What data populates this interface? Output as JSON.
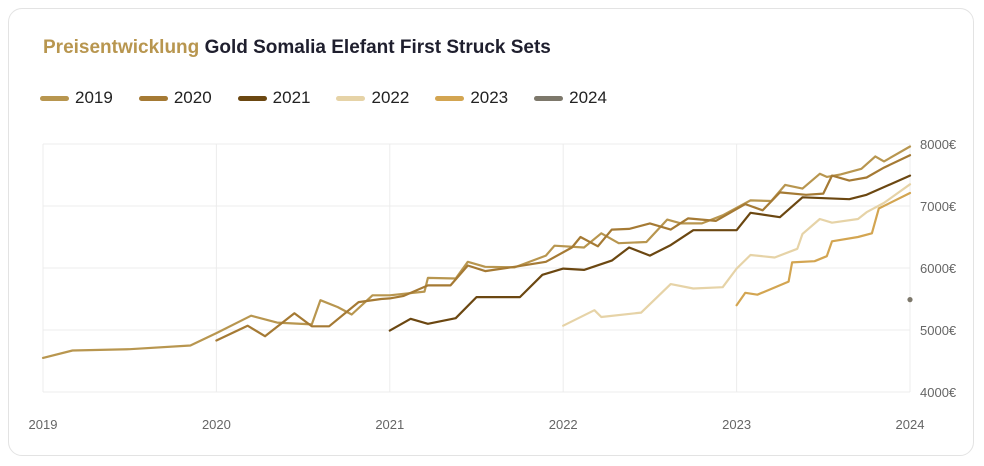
{
  "title": {
    "accent": "Preisentwicklung",
    "rest": "Gold Somalia Elefant First Struck Sets"
  },
  "chart_data": {
    "type": "line",
    "title": "Preisentwicklung Gold Somalia Elefant First Struck Sets",
    "xlabel": "",
    "ylabel": "",
    "xlim": [
      2019,
      2024
    ],
    "ylim": [
      4000,
      8000
    ],
    "x_ticks": [
      "2019",
      "2020",
      "2021",
      "2022",
      "2023",
      "2024"
    ],
    "y_ticks": [
      {
        "value": 8000,
        "label": "8000€"
      },
      {
        "value": 7000,
        "label": "7000€"
      },
      {
        "value": 6000,
        "label": "6000€"
      },
      {
        "value": 5000,
        "label": "5000€"
      },
      {
        "value": 4000,
        "label": "4000€"
      }
    ],
    "grid": true,
    "legend_position": "top-left",
    "series": [
      {
        "name": "2019",
        "color": "#b8964f",
        "points": [
          [
            2019.0,
            4550
          ],
          [
            2019.17,
            4670
          ],
          [
            2019.5,
            4690
          ],
          [
            2019.85,
            4750
          ],
          [
            2020.0,
            4950
          ],
          [
            2020.2,
            5230
          ],
          [
            2020.35,
            5120
          ],
          [
            2020.55,
            5090
          ],
          [
            2020.6,
            5480
          ],
          [
            2020.7,
            5370
          ],
          [
            2020.78,
            5250
          ],
          [
            2020.9,
            5560
          ],
          [
            2021.0,
            5560
          ],
          [
            2021.2,
            5620
          ],
          [
            2021.22,
            5840
          ],
          [
            2021.38,
            5830
          ],
          [
            2021.45,
            6100
          ],
          [
            2021.55,
            6020
          ],
          [
            2021.72,
            6010
          ],
          [
            2021.9,
            6200
          ],
          [
            2021.95,
            6360
          ],
          [
            2022.12,
            6330
          ],
          [
            2022.22,
            6560
          ],
          [
            2022.32,
            6400
          ],
          [
            2022.48,
            6420
          ],
          [
            2022.6,
            6780
          ],
          [
            2022.68,
            6720
          ],
          [
            2022.8,
            6720
          ],
          [
            2022.92,
            6850
          ],
          [
            2023.08,
            7090
          ],
          [
            2023.2,
            7080
          ],
          [
            2023.28,
            7340
          ],
          [
            2023.38,
            7280
          ],
          [
            2023.48,
            7520
          ],
          [
            2023.52,
            7470
          ],
          [
            2023.6,
            7510
          ],
          [
            2023.72,
            7600
          ],
          [
            2023.8,
            7800
          ],
          [
            2023.85,
            7720
          ],
          [
            2024.0,
            7960
          ]
        ]
      },
      {
        "name": "2020",
        "color": "#a57a34",
        "points": [
          [
            2020.0,
            4830
          ],
          [
            2020.18,
            5070
          ],
          [
            2020.28,
            4900
          ],
          [
            2020.45,
            5270
          ],
          [
            2020.55,
            5060
          ],
          [
            2020.65,
            5060
          ],
          [
            2020.82,
            5450
          ],
          [
            2020.95,
            5500
          ],
          [
            2021.0,
            5510
          ],
          [
            2021.08,
            5550
          ],
          [
            2021.22,
            5720
          ],
          [
            2021.35,
            5720
          ],
          [
            2021.45,
            6040
          ],
          [
            2021.55,
            5950
          ],
          [
            2021.72,
            6020
          ],
          [
            2021.9,
            6100
          ],
          [
            2022.05,
            6330
          ],
          [
            2022.1,
            6500
          ],
          [
            2022.2,
            6350
          ],
          [
            2022.28,
            6620
          ],
          [
            2022.38,
            6630
          ],
          [
            2022.5,
            6720
          ],
          [
            2022.62,
            6620
          ],
          [
            2022.72,
            6800
          ],
          [
            2022.88,
            6760
          ],
          [
            2023.05,
            7030
          ],
          [
            2023.15,
            6930
          ],
          [
            2023.25,
            7220
          ],
          [
            2023.4,
            7180
          ],
          [
            2023.5,
            7200
          ],
          [
            2023.55,
            7490
          ],
          [
            2023.65,
            7410
          ],
          [
            2023.75,
            7460
          ],
          [
            2023.85,
            7620
          ],
          [
            2024.0,
            7820
          ]
        ]
      },
      {
        "name": "2021",
        "color": "#6b4711",
        "points": [
          [
            2021.0,
            4990
          ],
          [
            2021.12,
            5180
          ],
          [
            2021.22,
            5100
          ],
          [
            2021.38,
            5190
          ],
          [
            2021.5,
            5530
          ],
          [
            2021.75,
            5530
          ],
          [
            2021.88,
            5890
          ],
          [
            2022.0,
            5990
          ],
          [
            2022.12,
            5970
          ],
          [
            2022.28,
            6120
          ],
          [
            2022.38,
            6330
          ],
          [
            2022.5,
            6200
          ],
          [
            2022.62,
            6370
          ],
          [
            2022.75,
            6610
          ],
          [
            2023.0,
            6610
          ],
          [
            2023.08,
            6890
          ],
          [
            2023.25,
            6820
          ],
          [
            2023.38,
            7140
          ],
          [
            2023.65,
            7110
          ],
          [
            2023.75,
            7180
          ],
          [
            2024.0,
            7490
          ]
        ]
      },
      {
        "name": "2022",
        "color": "#e6d3a7",
        "points": [
          [
            2022.0,
            5070
          ],
          [
            2022.18,
            5320
          ],
          [
            2022.22,
            5210
          ],
          [
            2022.45,
            5280
          ],
          [
            2022.62,
            5740
          ],
          [
            2022.75,
            5670
          ],
          [
            2022.92,
            5690
          ],
          [
            2023.0,
            5990
          ],
          [
            2023.08,
            6210
          ],
          [
            2023.22,
            6170
          ],
          [
            2023.35,
            6310
          ],
          [
            2023.38,
            6550
          ],
          [
            2023.48,
            6790
          ],
          [
            2023.55,
            6730
          ],
          [
            2023.7,
            6790
          ],
          [
            2023.75,
            6900
          ],
          [
            2023.85,
            7050
          ],
          [
            2024.0,
            7350
          ]
        ]
      },
      {
        "name": "2023",
        "color": "#d3a551",
        "points": [
          [
            2023.0,
            5400
          ],
          [
            2023.05,
            5600
          ],
          [
            2023.12,
            5570
          ],
          [
            2023.3,
            5780
          ],
          [
            2023.32,
            6090
          ],
          [
            2023.45,
            6110
          ],
          [
            2023.52,
            6190
          ],
          [
            2023.55,
            6430
          ],
          [
            2023.7,
            6500
          ],
          [
            2023.78,
            6560
          ],
          [
            2023.82,
            6960
          ],
          [
            2024.0,
            7210
          ]
        ]
      },
      {
        "name": "2024",
        "color": "#7d786b",
        "points": [
          [
            2024.0,
            5490
          ]
        ]
      }
    ]
  }
}
